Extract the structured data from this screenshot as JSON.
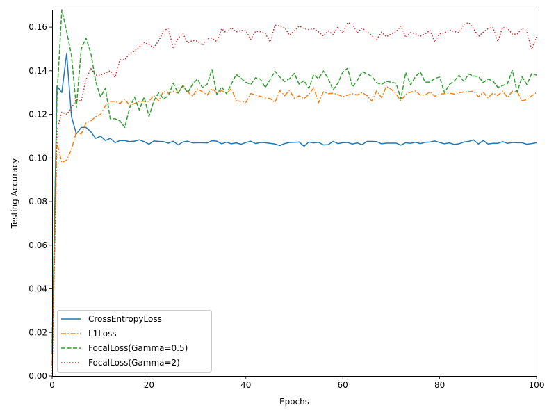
{
  "chart_data": {
    "type": "line",
    "xlabel": "Epochs",
    "ylabel": "Testing Accuracy",
    "xlim": [
      0,
      100
    ],
    "ylim": [
      0.0,
      0.168
    ],
    "xticks": [
      "0",
      "20",
      "40",
      "60",
      "80",
      "100"
    ],
    "yticks": [
      "0.00",
      "0.02",
      "0.04",
      "0.06",
      "0.08",
      "0.10",
      "0.12",
      "0.14",
      "0.16"
    ],
    "grid": false,
    "legend_position": "lower-left",
    "series": [
      {
        "name": "CrossEntropyLoss",
        "color": "#1f77b4",
        "style": "solid",
        "values": [
          0.01,
          0.133,
          0.13,
          0.148,
          0.119,
          0.111,
          0.114,
          0.114,
          0.112,
          0.109,
          0.11,
          0.108,
          0.109,
          0.107,
          0.108,
          0.108,
          0.1075,
          0.1077,
          0.1083,
          0.1075,
          0.1063,
          0.1078,
          0.1076,
          0.1075,
          0.1068,
          0.1077,
          0.106,
          0.1073,
          0.1077,
          0.1069,
          0.107,
          0.107,
          0.1069,
          0.1079,
          0.1077,
          0.1065,
          0.1072,
          0.1065,
          0.1069,
          0.1063,
          0.1071,
          0.1077,
          0.1066,
          0.1071,
          0.107,
          0.1067,
          0.1064,
          0.1057,
          0.1066,
          0.1071,
          0.1072,
          0.1073,
          0.1054,
          0.1073,
          0.1069,
          0.1072,
          0.106,
          0.1061,
          0.1076,
          0.1066,
          0.107,
          0.1071,
          0.1064,
          0.1069,
          0.1061,
          0.1076,
          0.1076,
          0.1075,
          0.1065,
          0.1068,
          0.1068,
          0.1068,
          0.1059,
          0.107,
          0.1067,
          0.1072,
          0.1066,
          0.1072,
          0.1073,
          0.1078,
          0.1071,
          0.1065,
          0.1069,
          0.1062,
          0.1065,
          0.1073,
          0.1076,
          0.1083,
          0.1064,
          0.108,
          0.1064,
          0.1067,
          0.1067,
          0.1075,
          0.1067,
          0.1071,
          0.107,
          0.107,
          0.1063,
          0.1066,
          0.107
        ]
      },
      {
        "name": "L1Loss",
        "color": "#ff7f0e",
        "style": "dashdot",
        "values": [
          0.005,
          0.107,
          0.098,
          0.099,
          0.104,
          0.112,
          0.111,
          0.116,
          0.117,
          0.119,
          0.12,
          0.124,
          0.126,
          0.126,
          0.125,
          0.127,
          0.124,
          0.125,
          0.126,
          0.126,
          0.126,
          0.1287,
          0.1262,
          0.1307,
          0.1297,
          0.1306,
          0.1298,
          0.1334,
          0.1303,
          0.1283,
          0.1317,
          0.1304,
          0.1289,
          0.132,
          0.1298,
          0.1309,
          0.1295,
          0.1319,
          0.1262,
          0.126,
          0.1255,
          0.1296,
          0.1288,
          0.1283,
          0.1275,
          0.1273,
          0.1255,
          0.1309,
          0.1286,
          0.131,
          0.1274,
          0.1285,
          0.1272,
          0.1292,
          0.1322,
          0.1253,
          0.1303,
          0.1295,
          0.1297,
          0.1291,
          0.1281,
          0.1288,
          0.1295,
          0.1289,
          0.13,
          0.1286,
          0.1261,
          0.1308,
          0.1277,
          0.1328,
          0.1315,
          0.1294,
          0.1262,
          0.1292,
          0.1302,
          0.1307,
          0.1289,
          0.1288,
          0.1304,
          0.1283,
          0.1293,
          0.1295,
          0.1298,
          0.1293,
          0.1299,
          0.1303,
          0.1304,
          0.1307,
          0.1281,
          0.1301,
          0.1276,
          0.1298,
          0.1287,
          0.1306,
          0.1278,
          0.1306,
          0.1305,
          0.1263,
          0.1267,
          0.1285,
          0.13
        ]
      },
      {
        "name": "FocalLoss(Gamma=0.5)",
        "color": "#2ca02c",
        "style": "dashed",
        "values": [
          0.015,
          0.128,
          0.168,
          0.158,
          0.147,
          0.123,
          0.15,
          0.155,
          0.148,
          0.135,
          0.128,
          0.132,
          0.118,
          0.118,
          0.117,
          0.114,
          0.123,
          0.128,
          0.122,
          0.128,
          0.119,
          0.1262,
          0.1299,
          0.1271,
          0.1285,
          0.1343,
          0.1298,
          0.1331,
          0.1299,
          0.1339,
          0.1362,
          0.1323,
          0.1338,
          0.1406,
          0.1291,
          0.1326,
          0.1295,
          0.1339,
          0.1383,
          0.1366,
          0.1347,
          0.1337,
          0.1368,
          0.1362,
          0.1323,
          0.1359,
          0.1398,
          0.1372,
          0.1351,
          0.1364,
          0.1388,
          0.1338,
          0.1355,
          0.1319,
          0.1382,
          0.1363,
          0.1399,
          0.1364,
          0.1312,
          0.1343,
          0.1394,
          0.1412,
          0.1325,
          0.1356,
          0.1396,
          0.1386,
          0.1374,
          0.1345,
          0.1337,
          0.1352,
          0.1347,
          0.1343,
          0.1271,
          0.1392,
          0.1335,
          0.1373,
          0.1395,
          0.1348,
          0.1348,
          0.1365,
          0.1371,
          0.1299,
          0.1337,
          0.1353,
          0.1379,
          0.1351,
          0.1385,
          0.1376,
          0.1374,
          0.1346,
          0.1362,
          0.1353,
          0.1324,
          0.1332,
          0.1341,
          0.1403,
          0.1302,
          0.1372,
          0.1337,
          0.1387,
          0.138
        ]
      },
      {
        "name": "FocalLoss(Gamma=2)",
        "color": "#d62728",
        "style": "dotted",
        "values": [
          0.001,
          0.113,
          0.121,
          0.12,
          0.123,
          0.127,
          0.126,
          0.136,
          0.141,
          0.138,
          0.138,
          0.139,
          0.14,
          0.137,
          0.145,
          0.145,
          0.148,
          0.149,
          0.151,
          0.153,
          0.152,
          0.1506,
          0.1538,
          0.1582,
          0.1595,
          0.1503,
          0.1549,
          0.1571,
          0.1528,
          0.1539,
          0.1536,
          0.1517,
          0.1547,
          0.1549,
          0.1534,
          0.1593,
          0.1572,
          0.1598,
          0.1578,
          0.1585,
          0.1584,
          0.1544,
          0.1581,
          0.1579,
          0.1571,
          0.1532,
          0.1609,
          0.1605,
          0.1598,
          0.1563,
          0.1583,
          0.1605,
          0.1593,
          0.1589,
          0.1593,
          0.1579,
          0.1559,
          0.1583,
          0.1566,
          0.1602,
          0.1573,
          0.1621,
          0.1613,
          0.1574,
          0.1596,
          0.1579,
          0.1562,
          0.1543,
          0.1577,
          0.1556,
          0.1569,
          0.1579,
          0.1605,
          0.1553,
          0.1575,
          0.157,
          0.1558,
          0.1569,
          0.1585,
          0.1532,
          0.157,
          0.1573,
          0.1588,
          0.158,
          0.1575,
          0.1613,
          0.1621,
          0.1593,
          0.1557,
          0.1577,
          0.1593,
          0.1599,
          0.1535,
          0.1598,
          0.1595,
          0.1568,
          0.1568,
          0.1595,
          0.1578,
          0.1498,
          0.1555
        ]
      }
    ]
  }
}
